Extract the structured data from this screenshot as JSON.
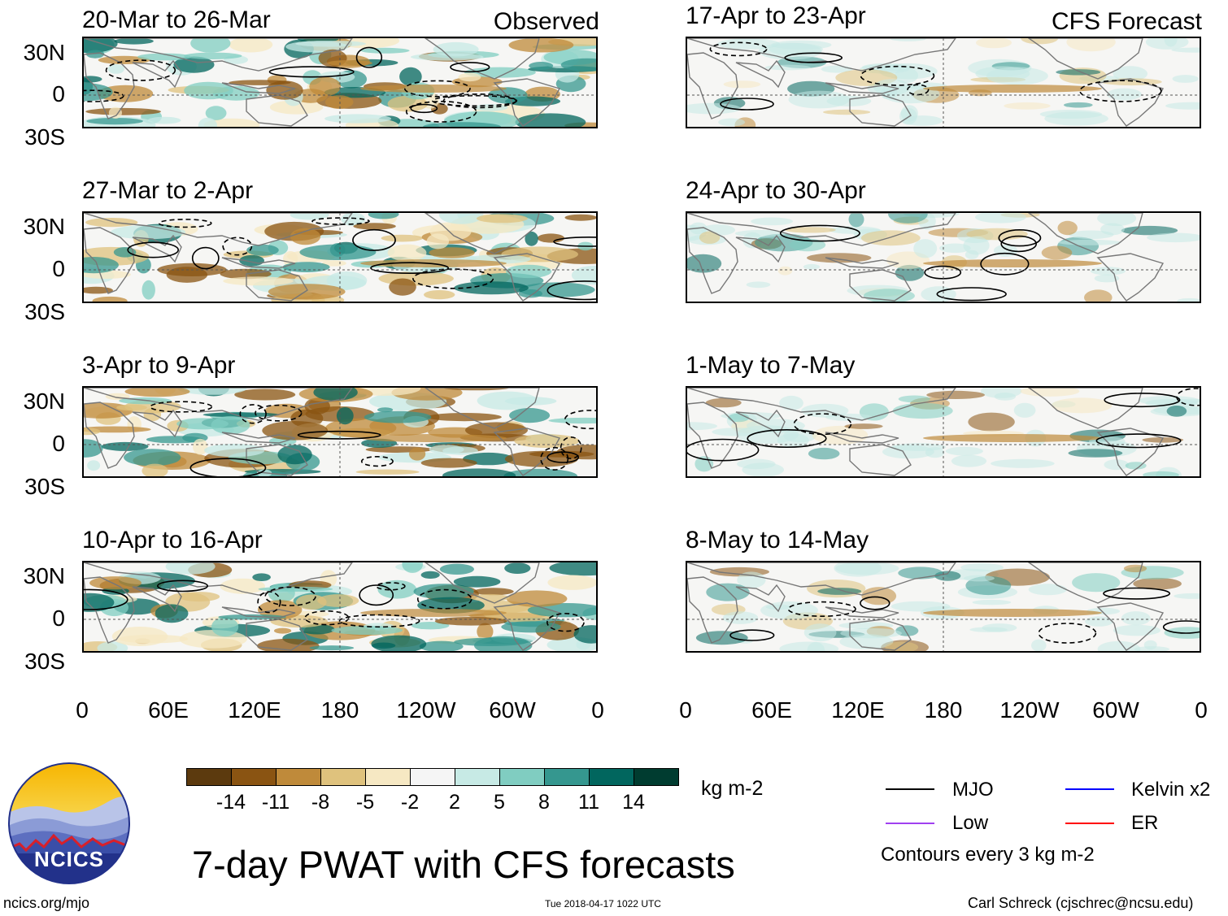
{
  "panels": [
    {
      "id": "obs1",
      "date_range": "20-Mar to 26-Mar",
      "tag": "Observed"
    },
    {
      "id": "obs2",
      "date_range": "27-Mar to 2-Apr",
      "tag": ""
    },
    {
      "id": "obs3",
      "date_range": "3-Apr to 9-Apr",
      "tag": ""
    },
    {
      "id": "obs4",
      "date_range": "10-Apr to 16-Apr",
      "tag": ""
    },
    {
      "id": "fc1",
      "date_range": "17-Apr to 23-Apr",
      "tag": "CFS Forecast"
    },
    {
      "id": "fc2",
      "date_range": "24-Apr to 30-Apr",
      "tag": ""
    },
    {
      "id": "fc3",
      "date_range": "1-May to 7-May",
      "tag": ""
    },
    {
      "id": "fc4",
      "date_range": "8-May to 14-May",
      "tag": ""
    }
  ],
  "lat_labels": [
    "30N",
    "0",
    "30S"
  ],
  "lon_labels": [
    "0",
    "60E",
    "120E",
    "180",
    "120W",
    "60W",
    "0"
  ],
  "colorbar": {
    "labels": [
      "-14",
      "-11",
      "-8",
      "-5",
      "-2",
      "2",
      "5",
      "8",
      "11",
      "14"
    ],
    "colors": [
      "#5c3a0e",
      "#8a5412",
      "#bf8a3a",
      "#dfc27d",
      "#f6e8c3",
      "#f5f5f5",
      "#c7eae5",
      "#80cdc1",
      "#35978f",
      "#01665e",
      "#003c30"
    ],
    "units": "kg m-2"
  },
  "legend": {
    "items": [
      {
        "label": "MJO",
        "color": "#000000"
      },
      {
        "label": "Kelvin x2",
        "color": "#0000ff"
      },
      {
        "label": "Low",
        "color": "#a040f0"
      },
      {
        "label": "ER",
        "color": "#ff0000"
      }
    ],
    "note": "Contours every 3 kg m-2"
  },
  "title": "7-day PWAT with CFS forecasts",
  "logo_text": "NCICS",
  "footer": {
    "url": "ncics.org/mjo",
    "timestamp": "Tue 2018-04-17 1022 UTC",
    "author": "Carl Schreck (cjschrec@ncsu.edu)"
  }
}
